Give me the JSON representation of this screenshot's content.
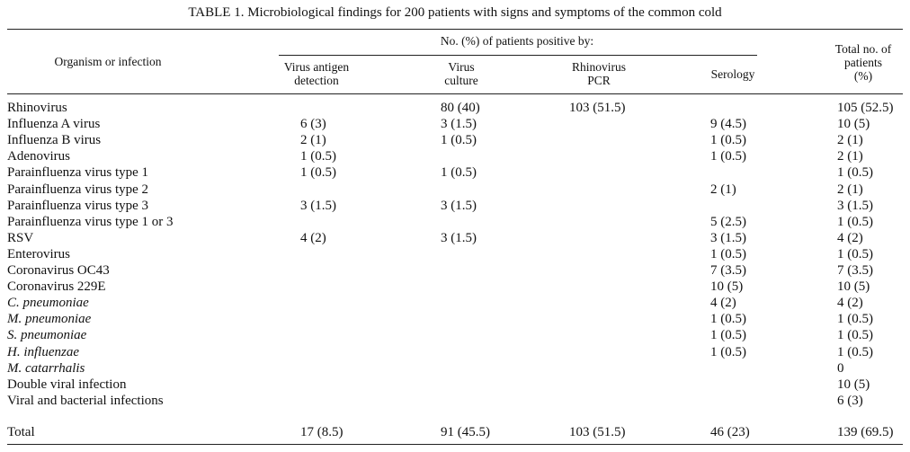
{
  "table": {
    "title": "TABLE 1. Microbiological findings for 200 patients with signs and symptoms of the common cold",
    "header": {
      "organism": "Organism or infection",
      "group": "No. (%) of patients positive by:",
      "antigen_1": "Virus antigen",
      "antigen_2": "detection",
      "culture_1": "Virus",
      "culture_2": "culture",
      "pcr_1": "Rhinovirus",
      "pcr_2": "PCR",
      "serology": "Serology",
      "total_1": "Total no. of",
      "total_2": "patients",
      "total_3": "(%)"
    },
    "rows": [
      {
        "name": "Rhinovirus",
        "italic": false,
        "antigen": "",
        "culture": "80 (40)",
        "pcr": "103 (51.5)",
        "serology": "",
        "total": "105 (52.5)"
      },
      {
        "name": "Influenza A virus",
        "italic": false,
        "antigen": "6 (3)",
        "culture": "3 (1.5)",
        "pcr": "",
        "serology": "9 (4.5)",
        "total": "10 (5)"
      },
      {
        "name": "Influenza B virus",
        "italic": false,
        "antigen": "2 (1)",
        "culture": "1 (0.5)",
        "pcr": "",
        "serology": "1 (0.5)",
        "total": "2 (1)"
      },
      {
        "name": "Adenovirus",
        "italic": false,
        "antigen": "1 (0.5)",
        "culture": "",
        "pcr": "",
        "serology": "1 (0.5)",
        "total": "2 (1)"
      },
      {
        "name": "Parainfluenza virus type 1",
        "italic": false,
        "antigen": "1 (0.5)",
        "culture": "1 (0.5)",
        "pcr": "",
        "serology": "",
        "total": "1 (0.5)"
      },
      {
        "name": "Parainfluenza virus type 2",
        "italic": false,
        "antigen": "",
        "culture": "",
        "pcr": "",
        "serology": "2 (1)",
        "total": "2 (1)"
      },
      {
        "name": "Parainfluenza virus type 3",
        "italic": false,
        "antigen": "3 (1.5)",
        "culture": "3 (1.5)",
        "pcr": "",
        "serology": "",
        "total": "3 (1.5)"
      },
      {
        "name": "Parainfluenza virus type 1 or 3",
        "italic": false,
        "antigen": "",
        "culture": "",
        "pcr": "",
        "serology": "5 (2.5)",
        "total": "1 (0.5)"
      },
      {
        "name": "RSV",
        "italic": false,
        "antigen": "4 (2)",
        "culture": "3 (1.5)",
        "pcr": "",
        "serology": "3 (1.5)",
        "total": "4 (2)"
      },
      {
        "name": "Enterovirus",
        "italic": false,
        "antigen": "",
        "culture": "",
        "pcr": "",
        "serology": "1 (0.5)",
        "total": "1 (0.5)"
      },
      {
        "name": "Coronavirus OC43",
        "italic": false,
        "antigen": "",
        "culture": "",
        "pcr": "",
        "serology": "7 (3.5)",
        "total": "7 (3.5)"
      },
      {
        "name": "Coronavirus 229E",
        "italic": false,
        "antigen": "",
        "culture": "",
        "pcr": "",
        "serology": "10 (5)",
        "total": "10 (5)"
      },
      {
        "name": "C. pneumoniae",
        "italic": true,
        "antigen": "",
        "culture": "",
        "pcr": "",
        "serology": "4 (2)",
        "total": "4 (2)"
      },
      {
        "name": "M. pneumoniae",
        "italic": true,
        "antigen": "",
        "culture": "",
        "pcr": "",
        "serology": "1 (0.5)",
        "total": "1 (0.5)"
      },
      {
        "name": "S. pneumoniae",
        "italic": true,
        "antigen": "",
        "culture": "",
        "pcr": "",
        "serology": "1 (0.5)",
        "total": "1 (0.5)"
      },
      {
        "name": "H. influenzae",
        "italic": true,
        "antigen": "",
        "culture": "",
        "pcr": "",
        "serology": "1 (0.5)",
        "total": "1 (0.5)"
      },
      {
        "name": "M. catarrhalis",
        "italic": true,
        "antigen": "",
        "culture": "",
        "pcr": "",
        "serology": "",
        "total": "0"
      },
      {
        "name": "Double viral infection",
        "italic": false,
        "antigen": "",
        "culture": "",
        "pcr": "",
        "serology": "",
        "total": "10 (5)"
      },
      {
        "name": "Viral and bacterial infections",
        "italic": false,
        "antigen": "",
        "culture": "",
        "pcr": "",
        "serology": "",
        "total": "6 (3)"
      }
    ],
    "total_row": {
      "name": "Total",
      "antigen": "17 (8.5)",
      "culture": "91 (45.5)",
      "pcr": "103 (51.5)",
      "serology": "46 (23)",
      "total": "139 (69.5)"
    }
  }
}
